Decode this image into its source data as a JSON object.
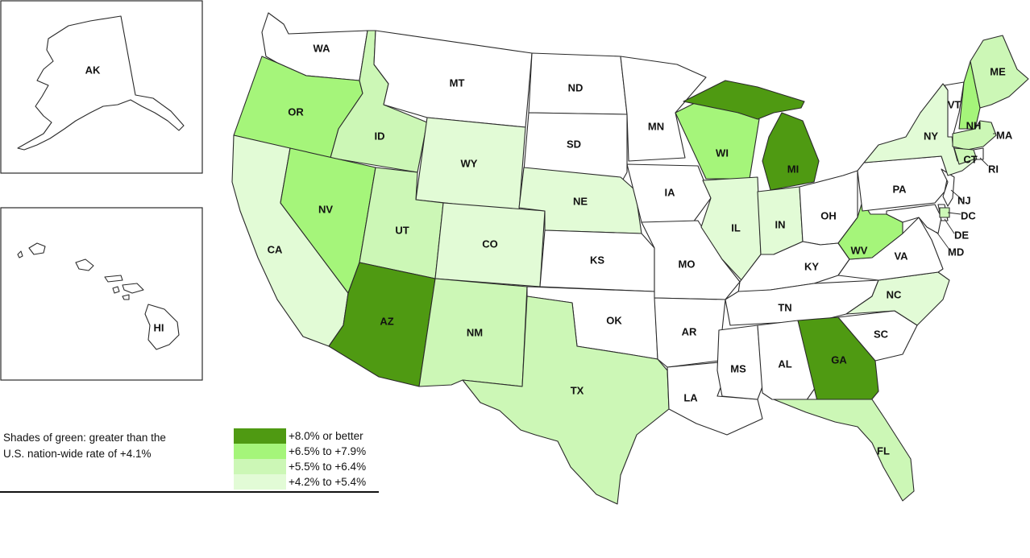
{
  "colors": {
    "g4": "#4f9a12",
    "g3": "#a5f57a",
    "g2": "#ccf7b6",
    "g1": "#e2fbd6",
    "none": "#ffffff"
  },
  "caption": {
    "line1": "Shades of green: greater than the",
    "line2": "U.S. nation-wide rate of +4.1%"
  },
  "legend": [
    {
      "label": "+8.0% or better",
      "color": "#4f9a12"
    },
    {
      "label": "+6.5% to +7.9%",
      "color": "#a5f57a"
    },
    {
      "label": "+5.5% to +6.4%",
      "color": "#ccf7b6"
    },
    {
      "label": "+4.2% to +5.4%",
      "color": "#e2fbd6"
    }
  ],
  "states": [
    {
      "code": "AK",
      "category": "none"
    },
    {
      "code": "HI",
      "category": "none"
    },
    {
      "code": "WA",
      "category": "none"
    },
    {
      "code": "OR",
      "category": "g3"
    },
    {
      "code": "CA",
      "category": "g1"
    },
    {
      "code": "ID",
      "category": "g2"
    },
    {
      "code": "NV",
      "category": "g3"
    },
    {
      "code": "MT",
      "category": "none"
    },
    {
      "code": "WY",
      "category": "g1"
    },
    {
      "code": "UT",
      "category": "g2"
    },
    {
      "code": "AZ",
      "category": "g4"
    },
    {
      "code": "CO",
      "category": "g1"
    },
    {
      "code": "NM",
      "category": "g2"
    },
    {
      "code": "ND",
      "category": "none"
    },
    {
      "code": "SD",
      "category": "none"
    },
    {
      "code": "NE",
      "category": "g1"
    },
    {
      "code": "KS",
      "category": "none"
    },
    {
      "code": "OK",
      "category": "none"
    },
    {
      "code": "TX",
      "category": "g2"
    },
    {
      "code": "MN",
      "category": "none"
    },
    {
      "code": "IA",
      "category": "none"
    },
    {
      "code": "MO",
      "category": "none"
    },
    {
      "code": "AR",
      "category": "none"
    },
    {
      "code": "LA",
      "category": "none"
    },
    {
      "code": "WI",
      "category": "g3"
    },
    {
      "code": "IL",
      "category": "g1"
    },
    {
      "code": "MI",
      "category": "g4"
    },
    {
      "code": "IN",
      "category": "g1"
    },
    {
      "code": "OH",
      "category": "none"
    },
    {
      "code": "KY",
      "category": "none"
    },
    {
      "code": "TN",
      "category": "none"
    },
    {
      "code": "MS",
      "category": "none"
    },
    {
      "code": "AL",
      "category": "none"
    },
    {
      "code": "GA",
      "category": "g4"
    },
    {
      "code": "FL",
      "category": "g2"
    },
    {
      "code": "SC",
      "category": "none"
    },
    {
      "code": "NC",
      "category": "g1"
    },
    {
      "code": "VA",
      "category": "none"
    },
    {
      "code": "WV",
      "category": "g3"
    },
    {
      "code": "MD",
      "category": "none"
    },
    {
      "code": "DE",
      "category": "none"
    },
    {
      "code": "DC",
      "category": "g2"
    },
    {
      "code": "PA",
      "category": "none"
    },
    {
      "code": "NJ",
      "category": "none"
    },
    {
      "code": "NY",
      "category": "g1"
    },
    {
      "code": "CT",
      "category": "g2"
    },
    {
      "code": "RI",
      "category": "none"
    },
    {
      "code": "MA",
      "category": "g2"
    },
    {
      "code": "VT",
      "category": "none"
    },
    {
      "code": "NH",
      "category": "g3"
    },
    {
      "code": "ME",
      "category": "g2"
    }
  ]
}
